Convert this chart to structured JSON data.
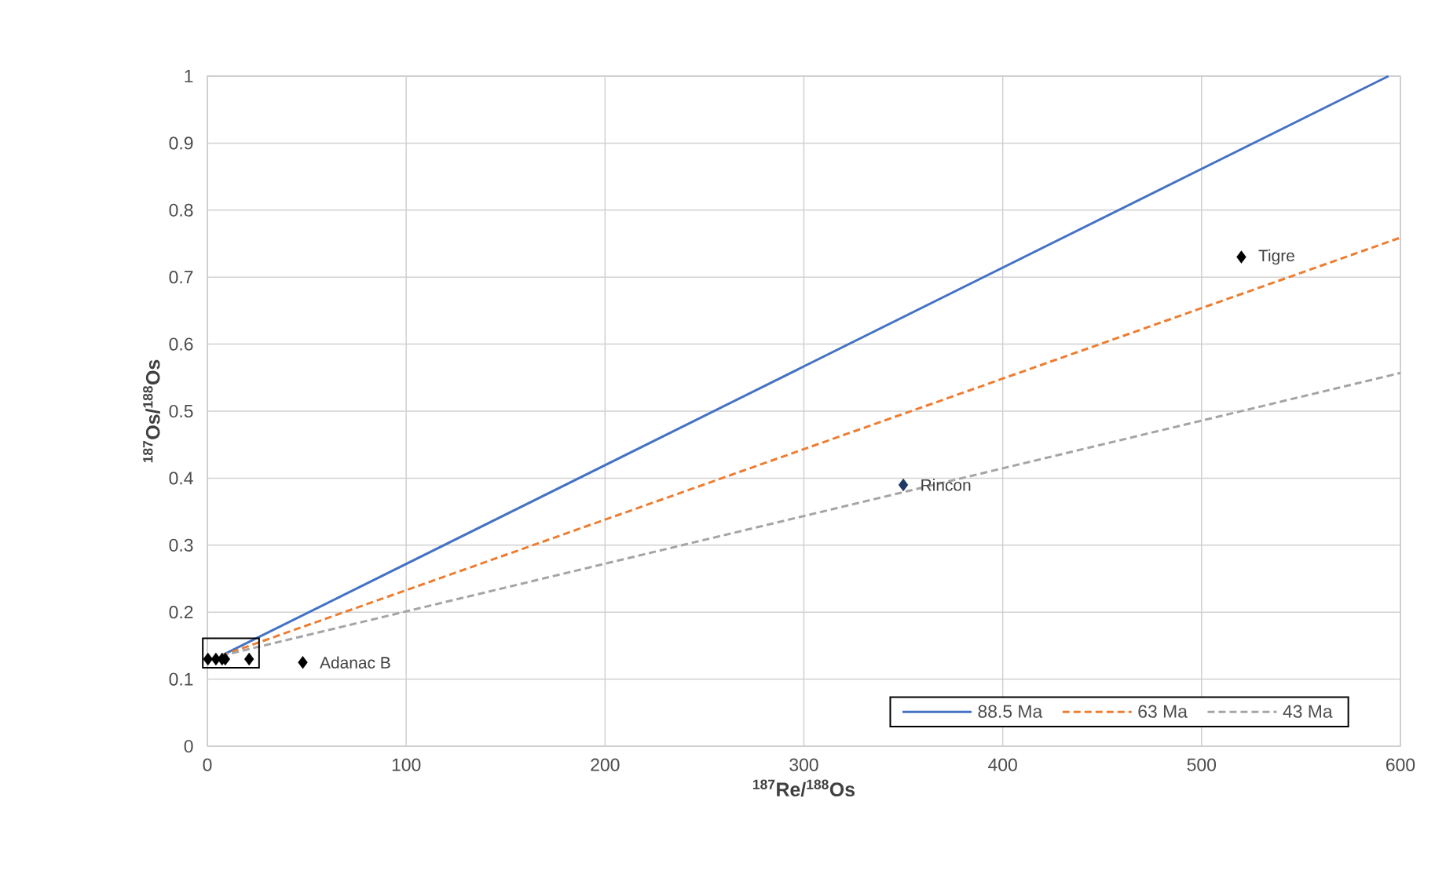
{
  "chart_data": {
    "type": "scatter",
    "xlabel": "$^{187}$Re/$^{188}$Os",
    "ylabel": "$^{187}$Os/$^{188}$Os",
    "xlim": [
      0,
      600
    ],
    "xticks": [
      0,
      100,
      200,
      300,
      400,
      500,
      600
    ],
    "ylim": [
      0,
      1
    ],
    "yticks": [
      0,
      0.1,
      0.2,
      0.3,
      0.4,
      0.5,
      0.6,
      0.7,
      0.8,
      0.9,
      1
    ],
    "grid": true,
    "legend": "bottom right",
    "series": [
      {
        "name": "88.5 Ma",
        "type": "line",
        "color": "#4472c4",
        "line_style": "solid",
        "marker": "none",
        "x": [
          7,
          594
        ],
        "values": [
          0.135,
          1.0
        ]
      },
      {
        "name": "63 Ma",
        "type": "line",
        "color": "#ed7d31",
        "line_style": "dashed",
        "marker": "none",
        "x": [
          7,
          600
        ],
        "values": [
          0.135,
          0.759
        ]
      },
      {
        "name": "43 Ma",
        "type": "line",
        "color": "#a5a5a5",
        "line_style": "dashed",
        "marker": "none",
        "x": [
          7,
          600
        ],
        "values": [
          0.135,
          0.557
        ]
      },
      {
        "marker": "diamond",
        "x": [
          0.3,
          4.3,
          7.4,
          9,
          21,
          48,
          350,
          520
        ],
        "values": [
          0.13,
          0.13,
          0.13,
          0.13,
          0.13,
          0.125,
          0.39,
          0.73
        ],
        "colors": [
          "#000000",
          "#000000",
          "#000000",
          "#000000",
          "#000000",
          "#000000",
          "#1f3864",
          "#000000"
        ]
      }
    ],
    "annotations": [
      {
        "text": "Adanac B",
        "x": 48,
        "y": 0.125
      },
      {
        "text": "Rincon",
        "x": 350,
        "y": 0.39
      },
      {
        "text": "Tigre",
        "x": 520,
        "y": 0.73
      }
    ]
  }
}
